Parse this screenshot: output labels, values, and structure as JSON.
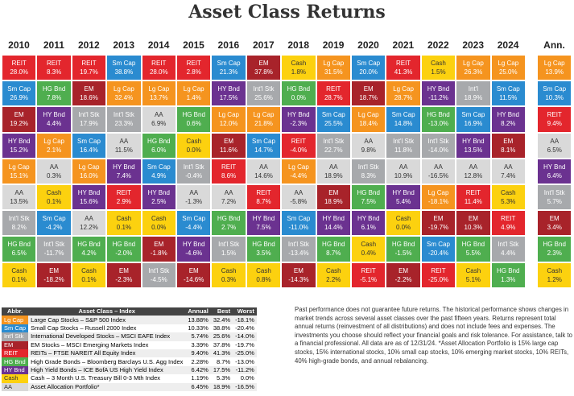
{
  "title": "Asset Class Returns",
  "ann_header": "Ann.",
  "columns": [
    {
      "year": "2010",
      "cells": [
        [
          "REIT",
          "28.0%",
          "#e3262d"
        ],
        [
          "Sm Cap",
          "26.9%",
          "#2a8bd0"
        ],
        [
          "EM",
          "19.2%",
          "#a8232a"
        ],
        [
          "HY Bnd",
          "15.2%",
          "#6b3290"
        ],
        [
          "Lg Cap",
          "15.1%",
          "#f5941f"
        ],
        [
          "AA",
          "13.5%",
          "#d9d9d9"
        ],
        [
          "Int'l Stk",
          "8.2%",
          "#a7a9ac"
        ],
        [
          "HG Bnd",
          "6.5%",
          "#4fae4f"
        ],
        [
          "Cash",
          "0.1%",
          "#fcd10f"
        ]
      ]
    },
    {
      "year": "2011",
      "cells": [
        [
          "REIT",
          "8.3%",
          "#e3262d"
        ],
        [
          "HG Bnd",
          "7.8%",
          "#4fae4f"
        ],
        [
          "HY Bnd",
          "4.4%",
          "#6b3290"
        ],
        [
          "Lg Cap",
          "2.1%",
          "#f5941f"
        ],
        [
          "AA",
          "0.3%",
          "#d9d9d9"
        ],
        [
          "Cash",
          "0.1%",
          "#fcd10f"
        ],
        [
          "Sm Cap",
          "-4.2%",
          "#2a8bd0"
        ],
        [
          "Int'l Stk",
          "-11.7%",
          "#a7a9ac"
        ],
        [
          "EM",
          "-18.2%",
          "#a8232a"
        ]
      ]
    },
    {
      "year": "2012",
      "cells": [
        [
          "REIT",
          "19.7%",
          "#e3262d"
        ],
        [
          "EM",
          "18.6%",
          "#a8232a"
        ],
        [
          "Int'l Stk",
          "17.9%",
          "#a7a9ac"
        ],
        [
          "Sm Cap",
          "16.4%",
          "#2a8bd0"
        ],
        [
          "Lg Cap",
          "16.0%",
          "#f5941f"
        ],
        [
          "HY Bnd",
          "15.6%",
          "#6b3290"
        ],
        [
          "AA",
          "12.2%",
          "#d9d9d9"
        ],
        [
          "HG Bnd",
          "4.2%",
          "#4fae4f"
        ],
        [
          "Cash",
          "0.1%",
          "#fcd10f"
        ]
      ]
    },
    {
      "year": "2013",
      "cells": [
        [
          "Sm Cap",
          "38.8%",
          "#2a8bd0"
        ],
        [
          "Lg Cap",
          "32.4%",
          "#f5941f"
        ],
        [
          "Int'l Stk",
          "23.3%",
          "#a7a9ac"
        ],
        [
          "AA",
          "11.5%",
          "#d9d9d9"
        ],
        [
          "HY Bnd",
          "7.4%",
          "#6b3290"
        ],
        [
          "REIT",
          "2.9%",
          "#e3262d"
        ],
        [
          "Cash",
          "0.1%",
          "#fcd10f"
        ],
        [
          "HG Bnd",
          "-2.0%",
          "#4fae4f"
        ],
        [
          "EM",
          "-2.3%",
          "#a8232a"
        ]
      ]
    },
    {
      "year": "2014",
      "cells": [
        [
          "REIT",
          "28.0%",
          "#e3262d"
        ],
        [
          "Lg Cap",
          "13.7%",
          "#f5941f"
        ],
        [
          "AA",
          "6.9%",
          "#d9d9d9"
        ],
        [
          "HG Bnd",
          "6.0%",
          "#4fae4f"
        ],
        [
          "Sm Cap",
          "4.9%",
          "#2a8bd0"
        ],
        [
          "HY Bnd",
          "2.5%",
          "#6b3290"
        ],
        [
          "Cash",
          "0.0%",
          "#fcd10f"
        ],
        [
          "EM",
          "-1.8%",
          "#a8232a"
        ],
        [
          "Int'l Stk",
          "-4.5%",
          "#a7a9ac"
        ]
      ]
    },
    {
      "year": "2015",
      "cells": [
        [
          "REIT",
          "2.8%",
          "#e3262d"
        ],
        [
          "Lg Cap",
          "1.4%",
          "#f5941f"
        ],
        [
          "HG Bnd",
          "0.6%",
          "#4fae4f"
        ],
        [
          "Cash",
          "0.0%",
          "#fcd10f"
        ],
        [
          "Int'l Stk",
          "-0.4%",
          "#a7a9ac"
        ],
        [
          "AA",
          "-1.3%",
          "#d9d9d9"
        ],
        [
          "Sm Cap",
          "-4.4%",
          "#2a8bd0"
        ],
        [
          "HY Bnd",
          "-4.6%",
          "#6b3290"
        ],
        [
          "EM",
          "-14.6%",
          "#a8232a"
        ]
      ]
    },
    {
      "year": "2016",
      "cells": [
        [
          "Sm Cap",
          "21.3%",
          "#2a8bd0"
        ],
        [
          "HY Bnd",
          "17.5%",
          "#6b3290"
        ],
        [
          "Lg Cap",
          "12.0%",
          "#f5941f"
        ],
        [
          "EM",
          "11.6%",
          "#a8232a"
        ],
        [
          "REIT",
          "8.6%",
          "#e3262d"
        ],
        [
          "AA",
          "7.2%",
          "#d9d9d9"
        ],
        [
          "HG Bnd",
          "2.7%",
          "#4fae4f"
        ],
        [
          "Int'l Stk",
          "1.5%",
          "#a7a9ac"
        ],
        [
          "Cash",
          "0.3%",
          "#fcd10f"
        ]
      ]
    },
    {
      "year": "2017",
      "cells": [
        [
          "EM",
          "37.8%",
          "#a8232a"
        ],
        [
          "Int'l Stk",
          "25.6%",
          "#a7a9ac"
        ],
        [
          "Lg Cap",
          "21.8%",
          "#f5941f"
        ],
        [
          "Sm Cap",
          "14.7%",
          "#2a8bd0"
        ],
        [
          "AA",
          "14.6%",
          "#d9d9d9"
        ],
        [
          "REIT",
          "8.7%",
          "#e3262d"
        ],
        [
          "HY Bnd",
          "7.5%",
          "#6b3290"
        ],
        [
          "HG Bnd",
          "3.5%",
          "#4fae4f"
        ],
        [
          "Cash",
          "0.8%",
          "#fcd10f"
        ]
      ]
    },
    {
      "year": "2018",
      "cells": [
        [
          "Cash",
          "1.8%",
          "#fcd10f"
        ],
        [
          "HG Bnd",
          "0.0%",
          "#4fae4f"
        ],
        [
          "HY Bnd",
          "-2.3%",
          "#6b3290"
        ],
        [
          "REIT",
          "-4.0%",
          "#e3262d"
        ],
        [
          "Lg Cap",
          "-4.4%",
          "#f5941f"
        ],
        [
          "AA",
          "-5.8%",
          "#d9d9d9"
        ],
        [
          "Sm Cap",
          "-11.0%",
          "#2a8bd0"
        ],
        [
          "Int'l Stk",
          "-13.4%",
          "#a7a9ac"
        ],
        [
          "EM",
          "-14.3%",
          "#a8232a"
        ]
      ]
    },
    {
      "year": "2019",
      "cells": [
        [
          "Lg Cap",
          "31.5%",
          "#f5941f"
        ],
        [
          "REIT",
          "28.7%",
          "#e3262d"
        ],
        [
          "Sm Cap",
          "25.5%",
          "#2a8bd0"
        ],
        [
          "Int'l Stk",
          "22.7%",
          "#a7a9ac"
        ],
        [
          "AA",
          "18.9%",
          "#d9d9d9"
        ],
        [
          "EM",
          "18.9%",
          "#a8232a"
        ],
        [
          "HY Bnd",
          "14.4%",
          "#6b3290"
        ],
        [
          "HG Bnd",
          "8.7%",
          "#4fae4f"
        ],
        [
          "Cash",
          "2.2%",
          "#fcd10f"
        ]
      ]
    },
    {
      "year": "2020",
      "cells": [
        [
          "Sm Cap",
          "20.0%",
          "#2a8bd0"
        ],
        [
          "EM",
          "18.7%",
          "#a8232a"
        ],
        [
          "Lg Cap",
          "18.4%",
          "#f5941f"
        ],
        [
          "AA",
          "9.8%",
          "#d9d9d9"
        ],
        [
          "Int'l Stk",
          "8.3%",
          "#a7a9ac"
        ],
        [
          "HG Bnd",
          "7.5%",
          "#4fae4f"
        ],
        [
          "HY Bnd",
          "6.1%",
          "#6b3290"
        ],
        [
          "Cash",
          "0.4%",
          "#fcd10f"
        ],
        [
          "REIT",
          "-5.1%",
          "#e3262d"
        ]
      ]
    },
    {
      "year": "2021",
      "cells": [
        [
          "REIT",
          "41.3%",
          "#e3262d"
        ],
        [
          "Lg Cap",
          "28.7%",
          "#f5941f"
        ],
        [
          "Sm Cap",
          "14.8%",
          "#2a8bd0"
        ],
        [
          "Int'l Stk",
          "11.8%",
          "#a7a9ac"
        ],
        [
          "AA",
          "10.9%",
          "#d9d9d9"
        ],
        [
          "HY Bnd",
          "5.4%",
          "#6b3290"
        ],
        [
          "Cash",
          "0.0%",
          "#fcd10f"
        ],
        [
          "HG Bnd",
          "-1.5%",
          "#4fae4f"
        ],
        [
          "EM",
          "-2.2%",
          "#a8232a"
        ]
      ]
    },
    {
      "year": "2022",
      "cells": [
        [
          "Cash",
          "1.5%",
          "#fcd10f"
        ],
        [
          "HY Bnd",
          "-11.2%",
          "#6b3290"
        ],
        [
          "HG Bnd",
          "-13.0%",
          "#4fae4f"
        ],
        [
          "Int'l Stk",
          "-14.0%",
          "#a7a9ac"
        ],
        [
          "AA",
          "-16.5%",
          "#d9d9d9"
        ],
        [
          "Lg Cap",
          "-18.1%",
          "#f5941f"
        ],
        [
          "EM",
          "-19.7%",
          "#a8232a"
        ],
        [
          "Sm Cap",
          "-20.4%",
          "#2a8bd0"
        ],
        [
          "REIT",
          "-25.0%",
          "#e3262d"
        ]
      ]
    },
    {
      "year": "2023",
      "cells": [
        [
          "Lg Cap",
          "26.3%",
          "#f5941f"
        ],
        [
          "Int'l",
          "18.9%",
          "#a7a9ac"
        ],
        [
          "Sm Cap",
          "16.9%",
          "#2a8bd0"
        ],
        [
          "HY Bnd",
          "13.5%",
          "#6b3290"
        ],
        [
          "AA",
          "12.8%",
          "#d9d9d9"
        ],
        [
          "REIT",
          "11.4%",
          "#e3262d"
        ],
        [
          "EM",
          "10.3%",
          "#a8232a"
        ],
        [
          "HG Bnd",
          "5.5%",
          "#4fae4f"
        ],
        [
          "Cash",
          "5.1%",
          "#fcd10f"
        ]
      ]
    },
    {
      "year": "2024",
      "cells": [
        [
          "Lg Cap",
          "25.0%",
          "#f5941f"
        ],
        [
          "Sm Cap",
          "11.5%",
          "#2a8bd0"
        ],
        [
          "HY Bnd",
          "8.2%",
          "#6b3290"
        ],
        [
          "EM",
          "8.1%",
          "#a8232a"
        ],
        [
          "AA",
          "7.4%",
          "#d9d9d9"
        ],
        [
          "Cash",
          "5.3%",
          "#fcd10f"
        ],
        [
          "REIT",
          "4.9%",
          "#e3262d"
        ],
        [
          "Int'l Stk",
          "4.4%",
          "#a7a9ac"
        ],
        [
          "HG Bnd",
          "1.3%",
          "#4fae4f"
        ]
      ]
    }
  ],
  "ann_cells": [
    [
      "Lg Cap",
      "13.9%",
      "#f5941f"
    ],
    [
      "Sm Cap",
      "10.3%",
      "#2a8bd0"
    ],
    [
      "REIT",
      "9.4%",
      "#e3262d"
    ],
    [
      "AA",
      "6.5%",
      "#d9d9d9"
    ],
    [
      "HY Bnd",
      "6.4%",
      "#6b3290"
    ],
    [
      "Int'l Stk",
      "5.7%",
      "#a7a9ac"
    ],
    [
      "EM",
      "3.4%",
      "#a8232a"
    ],
    [
      "HG Bnd",
      "2.3%",
      "#4fae4f"
    ],
    [
      "Cash",
      "1.2%",
      "#fcd10f"
    ]
  ],
  "legend": {
    "header": [
      "Abbr.",
      "Asset Class – Index",
      "Annual",
      "Best",
      "Worst"
    ],
    "rows": [
      [
        "Lg Cap",
        "Large Cap Stocks – S&P 500 Index",
        "13.88%",
        "32.4%",
        "-18.1%",
        "#f5941f"
      ],
      [
        "Sm Cap",
        "Small Cap Stocks – Russell 2000 Index",
        "10.33%",
        "38.8%",
        "-20.4%",
        "#2a8bd0"
      ],
      [
        "Int'l Stk",
        "International Developed Stocks – MSCI EAFE Index",
        "5.74%",
        "25.6%",
        "-14.0%",
        "#a7a9ac"
      ],
      [
        "EM",
        "EM Stocks – MSCI Emerging Markets Index",
        "3.39%",
        "37.8%",
        "-19.7%",
        "#a8232a"
      ],
      [
        "REIT",
        "REITs – FTSE NAREIT All Equity Index",
        "9.40%",
        "41.3%",
        "-25.0%",
        "#e3262d"
      ],
      [
        "HG Bnd",
        "High Grade Bonds – Bloomberg Barclays U.S. Agg Index",
        "2.28%",
        "8.7%",
        "-13.0%",
        "#4fae4f"
      ],
      [
        "HY Bnd",
        "High Yield Bonds – ICE BofA US High Yield Index",
        "6.42%",
        "17.5%",
        "-11.2%",
        "#6b3290"
      ],
      [
        "Cash",
        "Cash – 3 Month U.S. Treasury Bill 0-3 Mth Index",
        "1.19%",
        "5.3%",
        "0.0%",
        "#fcd10f"
      ],
      [
        "AA",
        "Asset Allocation Portfolio*",
        "6.45%",
        "18.9%",
        "-16.5%",
        "#d9d9d9"
      ]
    ]
  },
  "note": "Past performance does not guarantee future returns. The historical performance shows changes in market trends across several asset classes over the past fifteen years. Returns represent total annual returns (reinvestment of all distributions) and does not include fees and expenses. The investments you choose should reflect your financial goals and risk tolerance. For assistance, talk to a financial professional. All data are as of 12/31/24. *Asset Allocation Portfolio is 15% large cap stocks, 15% international stocks, 10% small cap stocks, 10% emerging market stocks, 10% REITs, 40% high-grade bonds, and annual rebalancing."
}
